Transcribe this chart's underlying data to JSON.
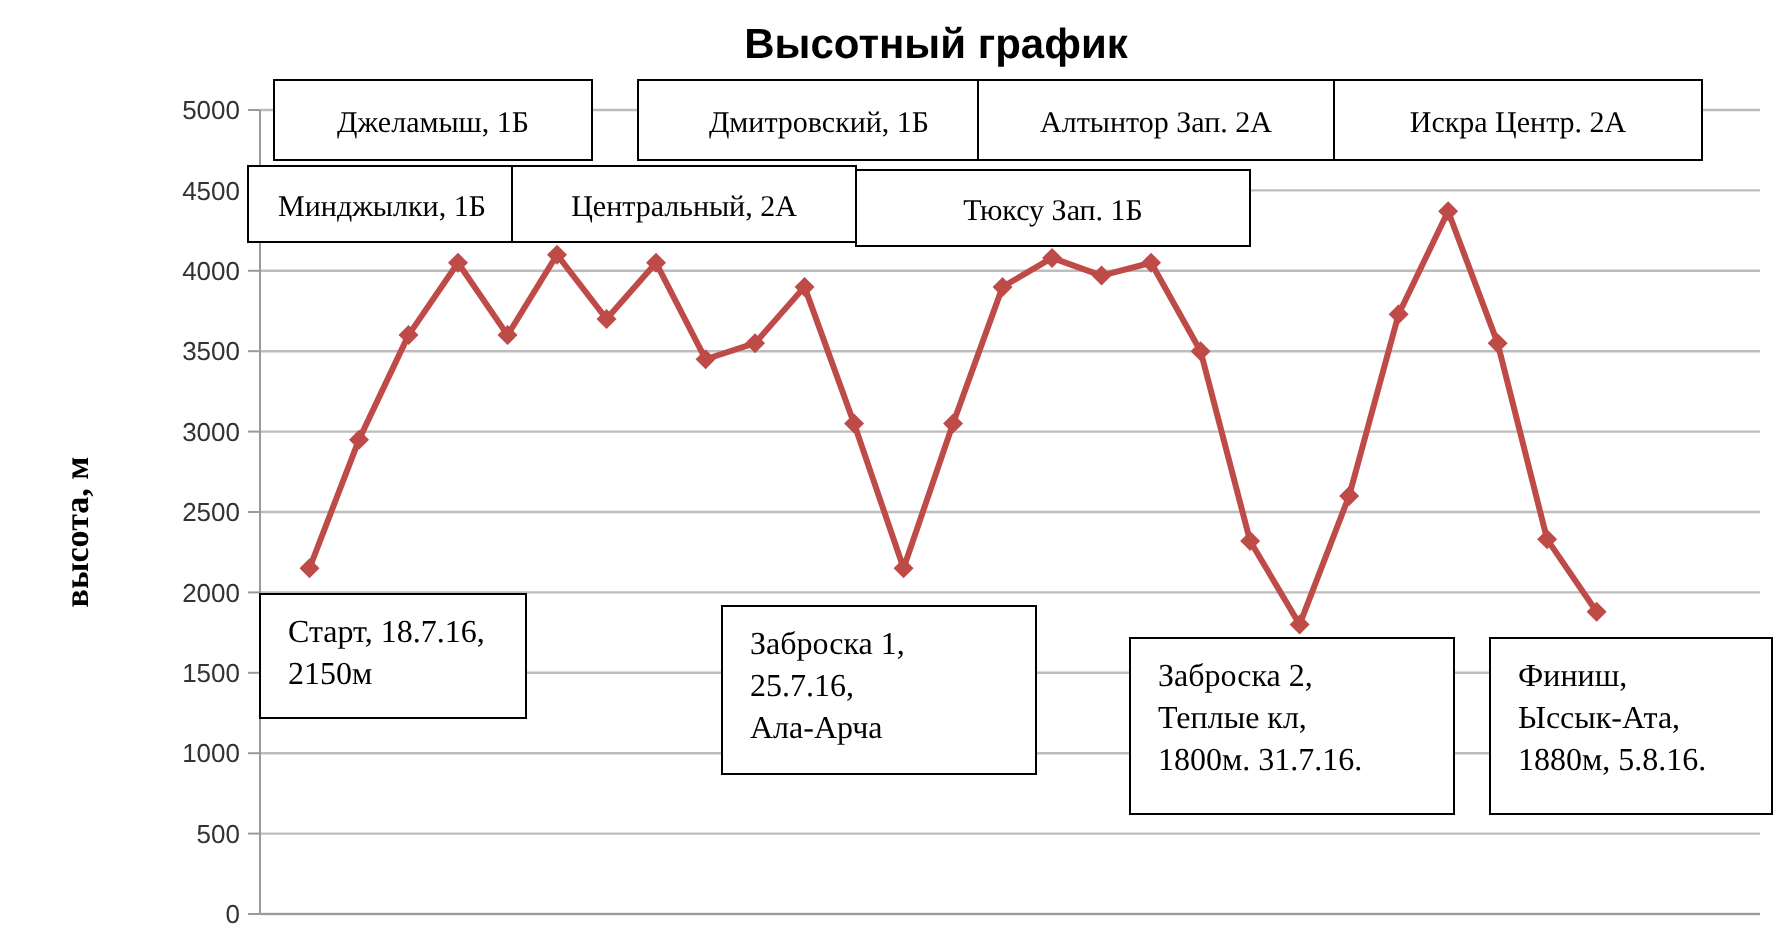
{
  "chart_data": {
    "type": "line",
    "title": "Высотный график",
    "ylabel": "высота, м",
    "categories": [
      null,
      null,
      null,
      null,
      null,
      null,
      null,
      null,
      null,
      null,
      null,
      null,
      null,
      null,
      null,
      null,
      null,
      null,
      null,
      null,
      null,
      null,
      null,
      null,
      null,
      null,
      null
    ],
    "series": [
      {
        "color": "#be4b48",
        "values": [
          2150,
          2950,
          3600,
          4050,
          3600,
          4100,
          3700,
          4050,
          3450,
          3550,
          3900,
          3050,
          2150,
          3050,
          3900,
          4080,
          3970,
          4050,
          3500,
          2320,
          1800,
          2600,
          3730,
          4370,
          3550,
          2330,
          1880
        ]
      }
    ],
    "ylim": [
      0,
      5000
    ],
    "yticks": [
      0,
      500,
      1000,
      1500,
      2000,
      2500,
      3000,
      3500,
      4000,
      4500,
      5000
    ],
    "grid": "y",
    "marker": "diamond",
    "line_style": "solid",
    "annotations": [
      "Джеламыш, 1Б",
      "Дмитровский, 1Б",
      "Алтынтор Зап. 2А",
      "Искра Центр. 2А",
      "Минджылки, 1Б",
      "Центральный, 2А",
      "Тюксу Зап. 1Б",
      "Старт, 18.7.16,\n2150м",
      "Заброска 1,\n25.7.16,\nАла-Арча",
      "Заброска 2,\nТеплые кл,\n1800м. 31.7.16.",
      "Финиш,\nЫссык-Ата,\n1880м, 5.8.16."
    ]
  }
}
